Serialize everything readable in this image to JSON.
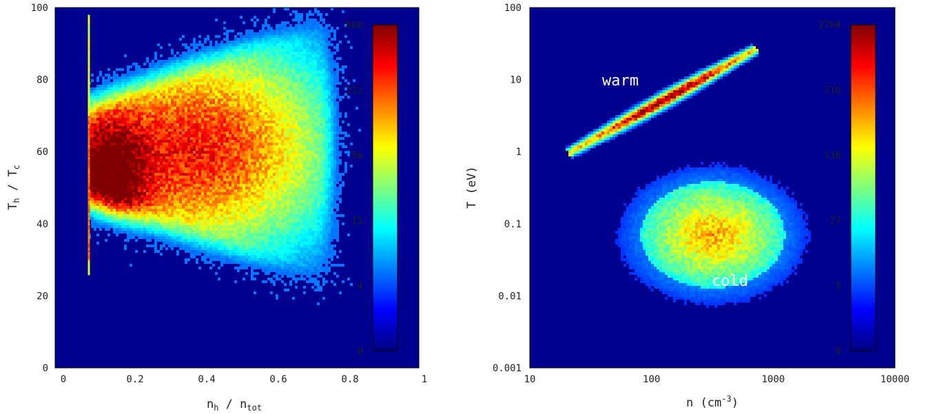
{
  "colors": {
    "background": "#00008f",
    "colormap": [
      "#00007f",
      "#0000ff",
      "#007fff",
      "#00ffff",
      "#7fff7f",
      "#ffff00",
      "#ff7f00",
      "#ff0000",
      "#7f0000"
    ]
  },
  "chart_data": [
    {
      "type": "heatmap",
      "xlabel": "n_h / n_tot",
      "xlabel_main": "n",
      "xlabel_sub": "h",
      "xlabel_sep": " / n",
      "xlabel_sub2": "tot",
      "ylabel": "T_h / T_c",
      "ylabel_main": "T",
      "ylabel_sub": "h",
      "ylabel_sep": " / T",
      "ylabel_sub2": "c",
      "xlim": [
        0,
        1
      ],
      "ylim": [
        0,
        100
      ],
      "xscale": "linear",
      "yscale": "linear",
      "x_ticks": [
        "0",
        "0.2",
        "0.4",
        "0.6",
        "0.8",
        "1"
      ],
      "y_ticks": [
        "0",
        "20",
        "40",
        "60",
        "80",
        "100"
      ],
      "colorbar_ticks": [
        "0",
        "4",
        "15",
        "56",
        "212",
        "808"
      ],
      "colorbar_max": 808,
      "grid": false,
      "density_peaks": [
        {
          "x": 0.14,
          "y": 52,
          "sx": 0.07,
          "sy": 12,
          "w": 1.0
        },
        {
          "x": 0.3,
          "y": 60,
          "sx": 0.22,
          "sy": 17,
          "w": 0.55
        },
        {
          "x": 0.5,
          "y": 62,
          "sx": 0.22,
          "sy": 21,
          "w": 0.35
        }
      ]
    },
    {
      "type": "heatmap",
      "xlabel": "n (cm^-3)",
      "xlabel_main": "n (cm",
      "xlabel_sup": "-3",
      "xlabel_end": ")",
      "ylabel": "T (eV)",
      "xlim": [
        10,
        10000
      ],
      "ylim": [
        0.001,
        100
      ],
      "xscale": "log",
      "yscale": "log",
      "x_ticks": [
        "10",
        "100",
        "1000",
        "10000"
      ],
      "y_ticks": [
        "0.001",
        "0.01",
        "0.1",
        "1",
        "10",
        "100"
      ],
      "colorbar_ticks": [
        "0",
        "5",
        "27",
        "138",
        "716",
        "3704"
      ],
      "colorbar_max": 3704,
      "grid": false,
      "annotations": [
        "warm",
        "cold"
      ],
      "populations": [
        {
          "name": "warm",
          "x_start": 22,
          "y_start": 1.0,
          "x_end": 680,
          "y_end": 25,
          "peak_x": 140,
          "peak_y": 4.5
        },
        {
          "name": "cold",
          "x_center": 320,
          "y_center": 0.07
        }
      ]
    }
  ]
}
